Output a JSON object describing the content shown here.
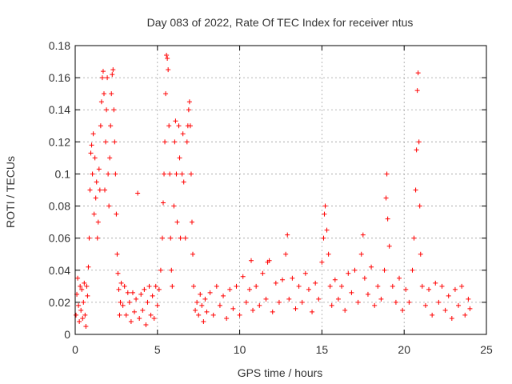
{
  "chart_data": {
    "type": "scatter",
    "title": "Day 083 of 2022, Rate Of TEC Index for receiver ntus",
    "xlabel": "GPS time / hours",
    "ylabel": "ROTI / TECUs",
    "xlim": [
      0,
      25
    ],
    "ylim": [
      0,
      0.18
    ],
    "x_ticks": [
      0,
      5,
      10,
      15,
      20,
      25
    ],
    "y_ticks": [
      0,
      0.02,
      0.04,
      0.06,
      0.08,
      0.1,
      0.12,
      0.14,
      0.16,
      0.18
    ],
    "x_tick_labels": [
      "0",
      "5",
      "10",
      "15",
      "20",
      "25"
    ],
    "y_tick_labels": [
      "0",
      "0.02",
      "0.04",
      "0.06",
      "0.08",
      "0.1",
      "0.12",
      "0.14",
      "0.16",
      "0.18"
    ],
    "grid": true,
    "legend": "none",
    "marker": "plus",
    "color": "#ff0000",
    "series": [
      {
        "points": [
          [
            0.05,
            0.012
          ],
          [
            0.1,
            0.025
          ],
          [
            0.15,
            0.035
          ],
          [
            0.2,
            0.018
          ],
          [
            0.25,
            0.008
          ],
          [
            0.3,
            0.03
          ],
          [
            0.35,
            0.015
          ],
          [
            0.4,
            0.028
          ],
          [
            0.45,
            0.01
          ],
          [
            0.5,
            0.02
          ],
          [
            0.55,
            0.032
          ],
          [
            0.6,
            0.012
          ],
          [
            0.65,
            0.005
          ],
          [
            0.7,
            0.03
          ],
          [
            0.75,
            0.024
          ],
          [
            0.8,
            0.042
          ],
          [
            0.85,
            0.06
          ],
          [
            0.9,
            0.09
          ],
          [
            0.95,
            0.113
          ],
          [
            1.0,
            0.118
          ],
          [
            1.05,
            0.1
          ],
          [
            1.1,
            0.125
          ],
          [
            1.15,
            0.075
          ],
          [
            1.2,
            0.11
          ],
          [
            1.25,
            0.085
          ],
          [
            1.3,
            0.095
          ],
          [
            1.35,
            0.06
          ],
          [
            1.4,
            0.07
          ],
          [
            1.45,
            0.103
          ],
          [
            1.5,
            0.09
          ],
          [
            1.55,
            0.13
          ],
          [
            1.6,
            0.145
          ],
          [
            1.65,
            0.16
          ],
          [
            1.7,
            0.164
          ],
          [
            1.75,
            0.15
          ],
          [
            1.8,
            0.09
          ],
          [
            1.85,
            0.12
          ],
          [
            1.9,
            0.14
          ],
          [
            1.95,
            0.16
          ],
          [
            2.0,
            0.1
          ],
          [
            2.05,
            0.08
          ],
          [
            2.1,
            0.11
          ],
          [
            2.15,
            0.13
          ],
          [
            2.2,
            0.15
          ],
          [
            2.25,
            0.162
          ],
          [
            2.3,
            0.165
          ],
          [
            2.35,
            0.14
          ],
          [
            2.4,
            0.12
          ],
          [
            2.45,
            0.1
          ],
          [
            2.5,
            0.075
          ],
          [
            2.55,
            0.05
          ],
          [
            2.6,
            0.038
          ],
          [
            2.65,
            0.028
          ],
          [
            2.7,
            0.012
          ],
          [
            2.75,
            0.02
          ],
          [
            2.8,
            0.032
          ],
          [
            2.9,
            0.018
          ],
          [
            3.0,
            0.03
          ],
          [
            3.1,
            0.012
          ],
          [
            3.2,
            0.026
          ],
          [
            3.3,
            0.02
          ],
          [
            3.4,
            0.008
          ],
          [
            3.5,
            0.026
          ],
          [
            3.6,
            0.014
          ],
          [
            3.7,
            0.022
          ],
          [
            3.8,
            0.088
          ],
          [
            3.9,
            0.01
          ],
          [
            4.0,
            0.025
          ],
          [
            4.1,
            0.015
          ],
          [
            4.2,
            0.028
          ],
          [
            4.3,
            0.006
          ],
          [
            4.4,
            0.02
          ],
          [
            4.5,
            0.03
          ],
          [
            4.6,
            0.012
          ],
          [
            4.7,
            0.024
          ],
          [
            4.8,
            0.01
          ],
          [
            4.9,
            0.03
          ],
          [
            5.0,
            0.018
          ],
          [
            5.1,
            0.028
          ],
          [
            5.2,
            0.04
          ],
          [
            5.3,
            0.06
          ],
          [
            5.35,
            0.082
          ],
          [
            5.4,
            0.1
          ],
          [
            5.45,
            0.12
          ],
          [
            5.5,
            0.15
          ],
          [
            5.55,
            0.174
          ],
          [
            5.6,
            0.172
          ],
          [
            5.65,
            0.165
          ],
          [
            5.7,
            0.13
          ],
          [
            5.75,
            0.1
          ],
          [
            5.8,
            0.06
          ],
          [
            5.85,
            0.04
          ],
          [
            5.9,
            0.03
          ],
          [
            6.0,
            0.08
          ],
          [
            6.05,
            0.12
          ],
          [
            6.1,
            0.133
          ],
          [
            6.15,
            0.1
          ],
          [
            6.2,
            0.07
          ],
          [
            6.3,
            0.13
          ],
          [
            6.35,
            0.11
          ],
          [
            6.4,
            0.06
          ],
          [
            6.5,
            0.1
          ],
          [
            6.55,
            0.125
          ],
          [
            6.6,
            0.095
          ],
          [
            6.7,
            0.06
          ],
          [
            6.8,
            0.12
          ],
          [
            6.85,
            0.13
          ],
          [
            6.9,
            0.14
          ],
          [
            6.95,
            0.145
          ],
          [
            7.0,
            0.13
          ],
          [
            7.05,
            0.1
          ],
          [
            7.1,
            0.07
          ],
          [
            7.15,
            0.05
          ],
          [
            7.2,
            0.03
          ],
          [
            7.3,
            0.015
          ],
          [
            7.4,
            0.02
          ],
          [
            7.5,
            0.012
          ],
          [
            7.6,
            0.025
          ],
          [
            7.7,
            0.018
          ],
          [
            7.8,
            0.008
          ],
          [
            7.9,
            0.022
          ],
          [
            8.0,
            0.014
          ],
          [
            8.2,
            0.026
          ],
          [
            8.4,
            0.012
          ],
          [
            8.6,
            0.03
          ],
          [
            8.8,
            0.018
          ],
          [
            9.0,
            0.024
          ],
          [
            9.2,
            0.01
          ],
          [
            9.4,
            0.028
          ],
          [
            9.6,
            0.016
          ],
          [
            9.8,
            0.03
          ],
          [
            10.0,
            0.012
          ],
          [
            10.2,
            0.036
          ],
          [
            10.4,
            0.02
          ],
          [
            10.6,
            0.028
          ],
          [
            10.7,
            0.046
          ],
          [
            10.8,
            0.015
          ],
          [
            11.0,
            0.03
          ],
          [
            11.2,
            0.018
          ],
          [
            11.4,
            0.038
          ],
          [
            11.6,
            0.022
          ],
          [
            11.7,
            0.045
          ],
          [
            11.8,
            0.046
          ],
          [
            12.0,
            0.014
          ],
          [
            12.2,
            0.032
          ],
          [
            12.4,
            0.02
          ],
          [
            12.6,
            0.034
          ],
          [
            12.8,
            0.05
          ],
          [
            12.9,
            0.062
          ],
          [
            13.0,
            0.022
          ],
          [
            13.2,
            0.035
          ],
          [
            13.4,
            0.016
          ],
          [
            13.6,
            0.03
          ],
          [
            13.8,
            0.02
          ],
          [
            14.0,
            0.038
          ],
          [
            14.2,
            0.028
          ],
          [
            14.4,
            0.014
          ],
          [
            14.6,
            0.032
          ],
          [
            14.8,
            0.022
          ],
          [
            15.0,
            0.045
          ],
          [
            15.1,
            0.06
          ],
          [
            15.15,
            0.075
          ],
          [
            15.2,
            0.08
          ],
          [
            15.3,
            0.065
          ],
          [
            15.4,
            0.05
          ],
          [
            15.5,
            0.03
          ],
          [
            15.6,
            0.018
          ],
          [
            15.8,
            0.034
          ],
          [
            16.0,
            0.022
          ],
          [
            16.2,
            0.03
          ],
          [
            16.4,
            0.015
          ],
          [
            16.6,
            0.038
          ],
          [
            16.8,
            0.026
          ],
          [
            17.0,
            0.04
          ],
          [
            17.2,
            0.02
          ],
          [
            17.4,
            0.05
          ],
          [
            17.5,
            0.062
          ],
          [
            17.6,
            0.035
          ],
          [
            17.8,
            0.025
          ],
          [
            18.0,
            0.042
          ],
          [
            18.2,
            0.018
          ],
          [
            18.4,
            0.03
          ],
          [
            18.6,
            0.022
          ],
          [
            18.8,
            0.04
          ],
          [
            18.9,
            0.085
          ],
          [
            18.95,
            0.1
          ],
          [
            19.0,
            0.072
          ],
          [
            19.1,
            0.055
          ],
          [
            19.3,
            0.03
          ],
          [
            19.5,
            0.02
          ],
          [
            19.7,
            0.035
          ],
          [
            19.9,
            0.015
          ],
          [
            20.1,
            0.028
          ],
          [
            20.3,
            0.02
          ],
          [
            20.5,
            0.04
          ],
          [
            20.6,
            0.06
          ],
          [
            20.7,
            0.09
          ],
          [
            20.75,
            0.115
          ],
          [
            20.8,
            0.152
          ],
          [
            20.85,
            0.163
          ],
          [
            20.9,
            0.12
          ],
          [
            20.95,
            0.08
          ],
          [
            21.0,
            0.05
          ],
          [
            21.1,
            0.03
          ],
          [
            21.3,
            0.018
          ],
          [
            21.5,
            0.028
          ],
          [
            21.7,
            0.012
          ],
          [
            21.9,
            0.032
          ],
          [
            22.1,
            0.02
          ],
          [
            22.3,
            0.03
          ],
          [
            22.5,
            0.015
          ],
          [
            22.7,
            0.024
          ],
          [
            22.9,
            0.01
          ],
          [
            23.1,
            0.028
          ],
          [
            23.3,
            0.018
          ],
          [
            23.5,
            0.03
          ],
          [
            23.7,
            0.012
          ],
          [
            23.9,
            0.022
          ],
          [
            24.0,
            0.016
          ]
        ]
      }
    ]
  }
}
